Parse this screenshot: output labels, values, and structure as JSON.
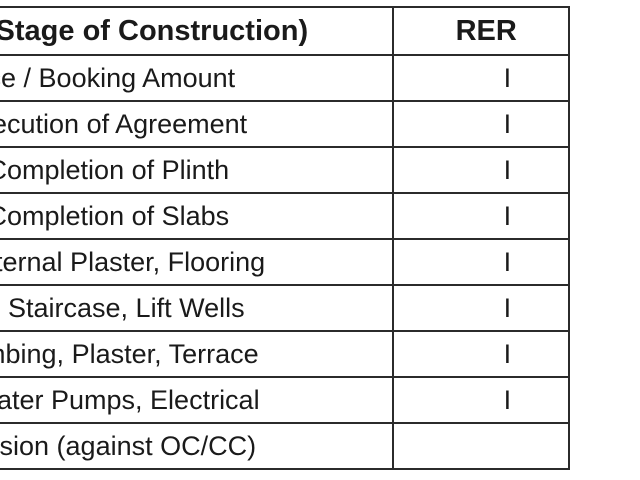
{
  "table": {
    "headers": {
      "milestone": "ne (Stage of Construction)",
      "rera": "RER"
    },
    "rows": [
      {
        "milestone": "vance / Booking Amount",
        "rera": "I"
      },
      {
        "milestone": "r Execution of Agreement",
        "rera": "I"
      },
      {
        "milestone": "On Completion of Plinth",
        "rera": "I"
      },
      {
        "milestone": "On Completion of Slabs",
        "rera": "I"
      },
      {
        "milestone": "s, Internal Plaster, Flooring",
        "rera": "I"
      },
      {
        "milestone": "itary, Staircase, Lift Wells",
        "rera": "I"
      },
      {
        "milestone": "Plumbing, Plaster, Terrace",
        "rera": "I"
      },
      {
        "milestone": "s, Water Pumps, Electrical",
        "rera": "I"
      },
      {
        "milestone": "ssession (against OC/CC)",
        "rera": ""
      }
    ]
  }
}
